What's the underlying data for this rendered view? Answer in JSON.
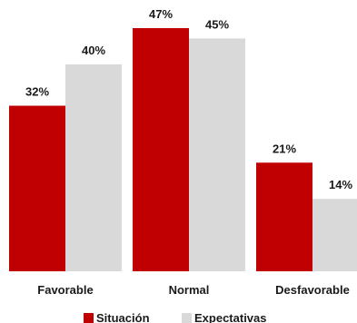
{
  "chart_data": {
    "type": "bar",
    "categories": [
      "Favorable",
      "Normal",
      "Desfavorable"
    ],
    "series": [
      {
        "name": "Situación",
        "values": [
          32,
          47,
          21
        ],
        "labels": [
          "32%",
          "47%",
          "21%"
        ]
      },
      {
        "name": "Expectativas",
        "values": [
          40,
          45,
          14
        ],
        "labels": [
          "40%",
          "45%",
          "14%"
        ]
      }
    ],
    "colors": [
      "#c00000",
      "#d9d9d9"
    ],
    "ylim": [
      0,
      50
    ],
    "grid": false,
    "legend": "bottom"
  }
}
